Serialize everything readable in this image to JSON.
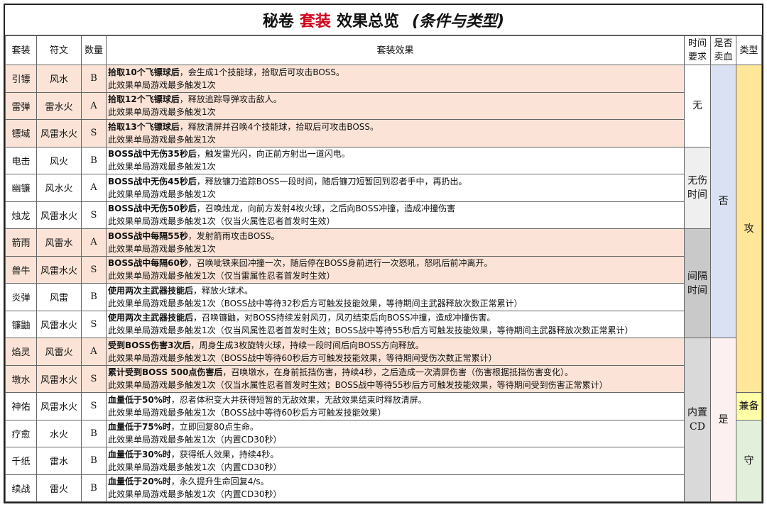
{
  "title": {
    "part1": "秘卷",
    "highlight": "套装",
    "part2": "效果总览",
    "paren": "(条件与类型)"
  },
  "colors": {
    "highlight": "#d0021b",
    "pink_row": "#fbe4d7",
    "no_sell": "#d9e1f2",
    "yes_sell": "#fdf0f0",
    "attack": "#ffe699",
    "both": "#ffffa8",
    "defense": "#e2efda",
    "no_hit": "#efefef",
    "interval": "#c9c9c9",
    "cd": "#d9d9d9"
  },
  "headers": {
    "set": "套装",
    "rune": "符文",
    "count": "数量",
    "effect": "套装效果",
    "time": "时间要求",
    "sell": "是否卖血",
    "type": "类型"
  },
  "rows": [
    {
      "set": "引镖",
      "rune": "风水",
      "count": "B",
      "bold": "拾取10个飞镖球后",
      "rest": "，会生成1个技能球，拾取后可攻击BOSS。",
      "note": "此效果单局游戏最多触发1次",
      "pink": true
    },
    {
      "set": "雷弹",
      "rune": "雷水火",
      "count": "A",
      "bold": "拾取12个飞镖球后",
      "rest": "，释放追踪导弹攻击敌人。",
      "note": "此效果单局游戏最多触发1次",
      "pink": true
    },
    {
      "set": "镖域",
      "rune": "风雷水火",
      "count": "S",
      "bold": "拾取13个飞镖球后",
      "rest": "，释放清屏并召唤4个技能球，拾取后可攻击BOSS。",
      "note": "此效果单局游戏最多触发1次",
      "pink": true
    },
    {
      "set": "电击",
      "rune": "风火",
      "count": "B",
      "bold": "BOSS战中无伤35秒后",
      "rest": "，触发雷光闪，向正前方射出一道闪电。",
      "note": "此效果单局游戏最多触发1次",
      "pink": false
    },
    {
      "set": "幽镰",
      "rune": "风水火",
      "count": "A",
      "bold": "BOSS战中无伤45秒后",
      "rest": "，释放镰刀追踪BOSS一段时间，随后镰刀短暂回到忍者手中，再扔出。",
      "note": "此效果单局游戏最多触发1次",
      "pink": false
    },
    {
      "set": "烛龙",
      "rune": "风雷水火",
      "count": "S",
      "bold": "BOSS战中无伤50秒后",
      "rest": "，召唤烛龙，向前方发射4枚火球，之后向BOSS冲撞，造成冲撞伤害",
      "note": "此效果单局游戏最多触发1次（仅当火属性忍者首发时生效）",
      "pink": false
    },
    {
      "set": "箭雨",
      "rune": "风雷水",
      "count": "A",
      "bold": "BOSS战中每隔55秒",
      "rest": "，发射箭雨攻击BOSS。",
      "note": "此效果单局游戏最多触发1次",
      "pink": true
    },
    {
      "set": "兽牛",
      "rune": "风雷水火",
      "count": "S",
      "bold": "BOSS战中每隔60秒",
      "rest": "，召唤呲铁来回冲撞一次，随后停在BOSS身前进行一次怒吼，怒吼后前冲离开。",
      "note": "此效果单局游戏最多触发1次（仅当雷属性忍者首发时生效）",
      "pink": true
    },
    {
      "set": "炎弹",
      "rune": "风雷",
      "count": "B",
      "bold": "使用两次主武器技能后",
      "rest": "，释放火球术。",
      "note": "此效果单局游戏最多触发1次（BOSS战中等待32秒后方可触发技能效果，等待期间主武器释放次数正常累计）",
      "pink": false
    },
    {
      "set": "镰鼬",
      "rune": "风雷水火",
      "count": "S",
      "bold": "使用两次主武器技能后",
      "rest": "，召唤镰鼬，对BOSS持续发射风刃，风刃结束后向BOSS冲撞，造成冲撞伤害。",
      "note": "此效果单局游戏最多触发1次（仅当风属性忍者首发时生效；BOSS战中等待55秒后方可触发技能效果，等待期间主武器释放次数正常累计）",
      "pink": false
    },
    {
      "set": "焰灵",
      "rune": "风雷火",
      "count": "A",
      "bold": "受到BOSS伤害3次后",
      "rest": "，周身生成3枚旋转火球，持续一段时间后向BOSS方向释放。",
      "note": "此效果单局游戏最多触发1次（BOSS战中等待60秒后方可触发技能效果，等待期间受伤次数正常累计）",
      "pink": true
    },
    {
      "set": "墩水",
      "rune": "风雷水火",
      "count": "S",
      "bold": "累计受到BOSS 500点伤害后",
      "rest": "，召唤墩水，在身前抵挡伤害，持续4秒，之后造成一次清屏伤害（伤害根据抵挡伤害变化）。",
      "note": "此效果单局游戏最多触发1次（仅当水属性忍者首发时生效；BOSS战中等待55秒后方可触发技能效果，等待期间受到伤害正常累计）",
      "pink": true
    },
    {
      "set": "神佑",
      "rune": "风雷水火",
      "count": "S",
      "bold": "血量低于50%时",
      "rest": "，忍者体积变大并获得短暂的无敌效果，无敌效果结束时释放清屏。",
      "note": "此效果单局游戏最多触发1次（BOSS战中等待60秒后方可触发技能效果）",
      "pink": false
    },
    {
      "set": "疗愈",
      "rune": "水火",
      "count": "B",
      "bold": "血量低于75%时",
      "rest": "，立即回复80点生命。",
      "note": "此效果单局游戏最多触发1次（内置CD30秒）",
      "pink": false
    },
    {
      "set": "千纸",
      "rune": "雷水",
      "count": "B",
      "bold": "血量低于30%时",
      "rest": "，获得纸人效果，持续4秒。",
      "note": "此效果单局游戏最多触发1次（内置CD30秒）",
      "pink": false
    },
    {
      "set": "续战",
      "rune": "雷火",
      "count": "B",
      "bold": "血量低于20%时",
      "rest": "，永久提升生命回复4/s。",
      "note": "此效果单局游戏最多触发1次（内置CD30秒）",
      "pink": false
    }
  ],
  "time_groups": [
    {
      "label": "无",
      "span": 3,
      "color": "#ffffff"
    },
    {
      "label": "无伤时间",
      "span": 3,
      "color": "#efefef"
    },
    {
      "label": "间隔时间",
      "span": 4,
      "color": "#c9c9c9"
    },
    {
      "label": "内置CD",
      "span": 6,
      "color": "#d9d9d9"
    }
  ],
  "sell_groups": [
    {
      "label": "否",
      "span": 10,
      "color": "#d9e1f2"
    },
    {
      "label": "是",
      "span": 6,
      "color": "#fdf0f0"
    }
  ],
  "type_groups": [
    {
      "label": "攻",
      "span": 12,
      "color": "#ffe699"
    },
    {
      "label": "兼备",
      "span": 1,
      "color": "#ffffa8"
    },
    {
      "label": "守",
      "span": 3,
      "color": "#e2efda"
    }
  ]
}
